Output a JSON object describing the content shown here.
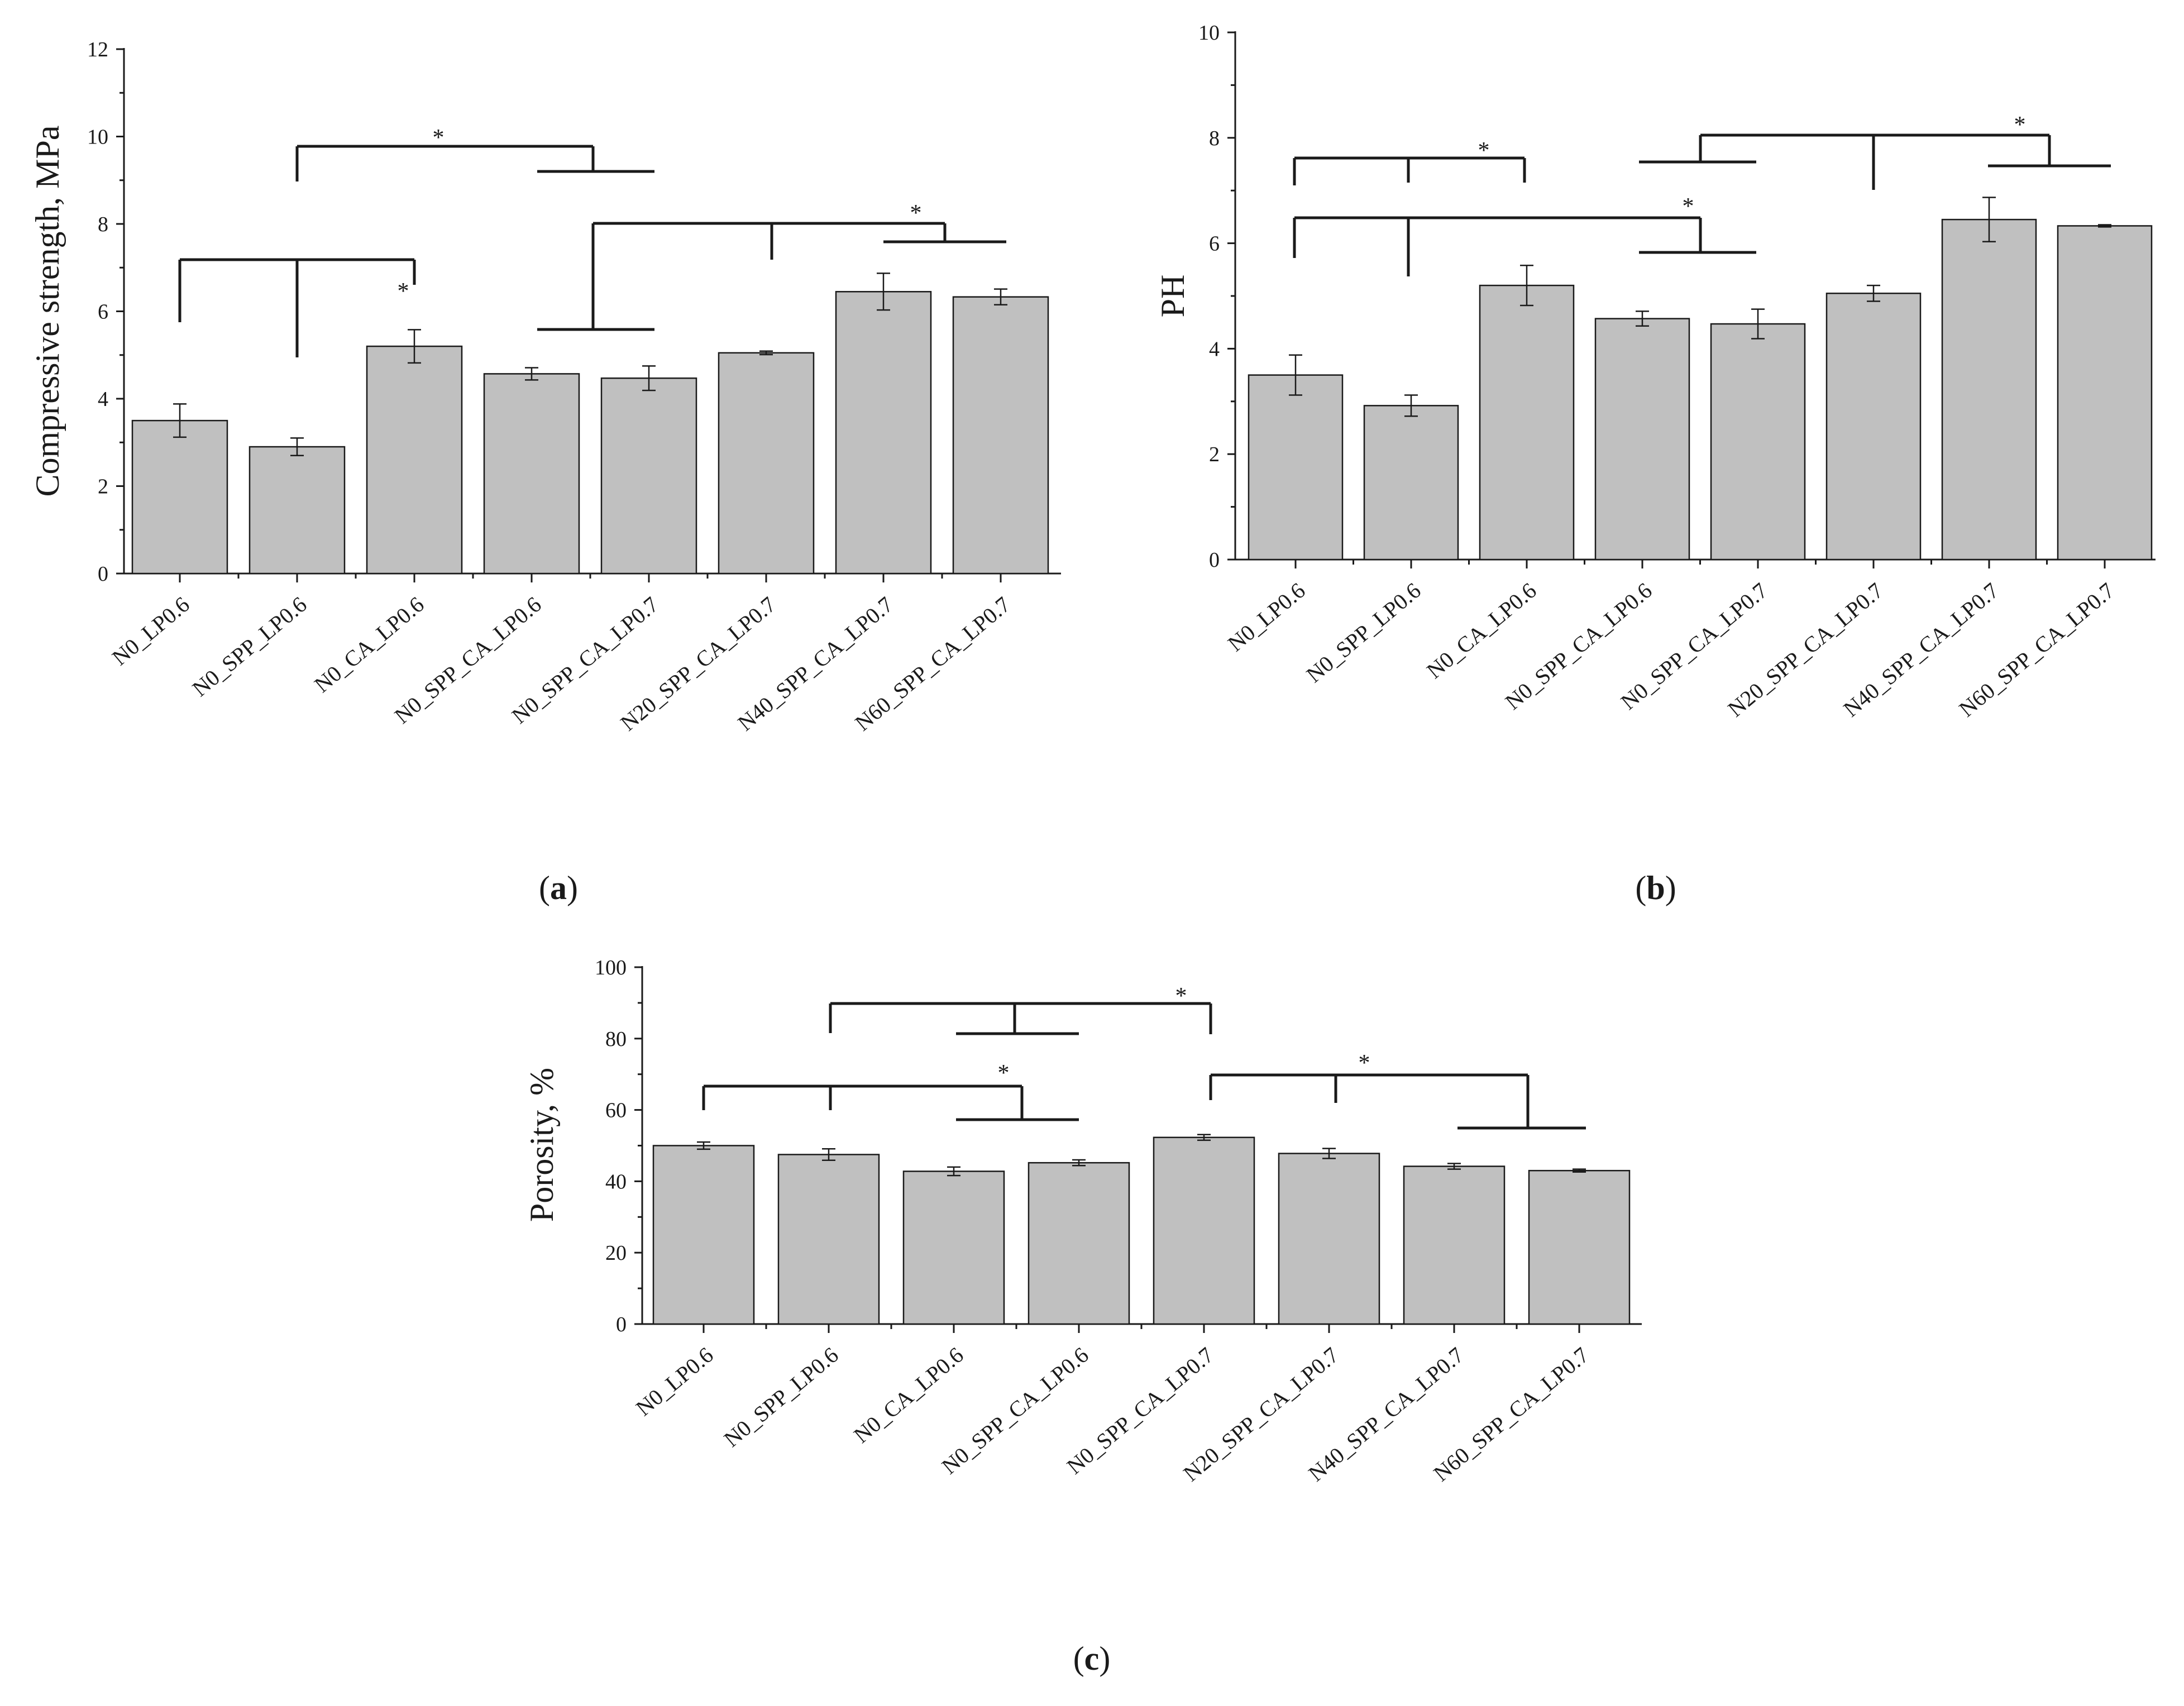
{
  "chart_data": [
    {
      "id": "a",
      "type": "bar",
      "panel_label": "a",
      "title": "",
      "xlabel": "",
      "ylabel": "Compressive strength, MPa",
      "ylim": [
        0,
        12
      ],
      "yticks": [
        0,
        2,
        4,
        6,
        8,
        10,
        12
      ],
      "categories": [
        "N0_LP0.6",
        "N0_SPP_LP0.6",
        "N0_CA_LP0.6",
        "N0_SPP_CA_LP0.6",
        "N0_SPP_CA_LP0.7",
        "N20_SPP_CA_LP0.7",
        "N40_SPP_CA_LP0.7",
        "N60_SPP_CA_LP0.7"
      ],
      "values": [
        3.5,
        2.9,
        5.2,
        4.57,
        4.47,
        5.05,
        6.45,
        6.33
      ],
      "errors": [
        0.38,
        0.2,
        0.38,
        0.14,
        0.28,
        0.04,
        0.42,
        0.18
      ],
      "significance": [
        {
          "label": "*",
          "groups": [
            [
              0,
              1
            ],
            [
              2
            ]
          ]
        },
        {
          "label": "*",
          "groups": [
            [
              1
            ],
            [
              3,
              4
            ]
          ]
        },
        {
          "label": "*",
          "groups": [
            [
              3
            ],
            [
              4,
              5
            ],
            [
              6,
              7
            ]
          ]
        }
      ]
    },
    {
      "id": "b",
      "type": "bar",
      "panel_label": "b",
      "title": "",
      "xlabel": "",
      "ylabel": "PH",
      "ylim": [
        0,
        10
      ],
      "yticks": [
        0,
        2,
        4,
        6,
        8,
        10
      ],
      "categories": [
        "N0_LP0.6",
        "N0_SPP_LP0.6",
        "N0_CA_LP0.6",
        "N0_SPP_CA_LP0.6",
        "N0_SPP_CA_LP0.7",
        "N20_SPP_CA_LP0.7",
        "N40_SPP_CA_LP0.7",
        "N60_SPP_CA_LP0.7"
      ],
      "values": [
        3.5,
        2.92,
        5.2,
        4.57,
        4.47,
        5.05,
        6.45,
        6.33
      ],
      "errors": [
        0.38,
        0.2,
        0.38,
        0.14,
        0.28,
        0.15,
        0.42,
        0.02
      ],
      "significance": [
        {
          "label": "*",
          "groups": [
            [
              0,
              1
            ],
            [
              2
            ]
          ]
        },
        {
          "label": "*",
          "groups": [
            [
              0,
              1
            ],
            [
              3,
              4
            ]
          ]
        },
        {
          "label": "*",
          "groups": [
            [
              3,
              4
            ],
            [
              5
            ],
            [
              6,
              7
            ]
          ]
        }
      ]
    },
    {
      "id": "c",
      "type": "bar",
      "panel_label": "c",
      "title": "",
      "xlabel": "",
      "ylabel": "Porosity, %",
      "ylim": [
        0,
        100
      ],
      "yticks": [
        0,
        20,
        40,
        60,
        80,
        100
      ],
      "categories": [
        "N0_LP0.6",
        "N0_SPP_LP0.6",
        "N0_CA_LP0.6",
        "N0_SPP_CA_LP0.6",
        "N0_SPP_CA_LP0.7",
        "N20_SPP_CA_LP0.7",
        "N40_SPP_CA_LP0.7",
        "N60_SPP_CA_LP0.7"
      ],
      "values": [
        50,
        47.5,
        42.8,
        45.2,
        52.3,
        47.8,
        44.2,
        43
      ],
      "errors": [
        1.0,
        1.6,
        1.2,
        0.8,
        0.8,
        1.4,
        0.8,
        0.4
      ],
      "significance": [
        {
          "label": "*",
          "groups": [
            [
              1
            ],
            [
              2,
              3
            ],
            [
              4
            ]
          ]
        },
        {
          "label": "*",
          "groups": [
            [
              0,
              1
            ],
            [
              2,
              3
            ]
          ]
        },
        {
          "label": "*",
          "groups": [
            [
              4,
              5
            ],
            [
              6,
              7
            ]
          ]
        }
      ]
    }
  ]
}
